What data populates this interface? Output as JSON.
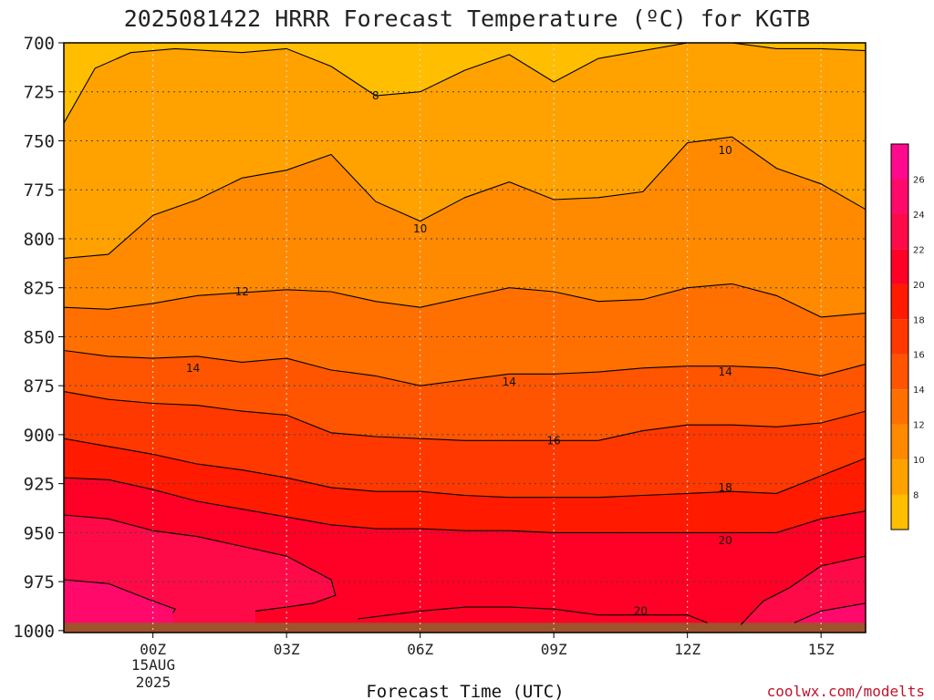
{
  "chart_data": {
    "type": "filled-contour",
    "title": "2025081422 HRRR Forecast Temperature (ºC) for KGTB",
    "xlabel": "Forecast Time (UTC)",
    "ylabel": "",
    "x_ticks": [
      "00Z",
      "03Z",
      "06Z",
      "09Z",
      "12Z",
      "15Z"
    ],
    "x_tick_hours": [
      0,
      3,
      6,
      9,
      12,
      15
    ],
    "x_date_label": [
      "15AUG",
      "2025"
    ],
    "x_range_hours": [
      -2,
      16
    ],
    "y_ticks": [
      700,
      725,
      750,
      775,
      800,
      825,
      850,
      875,
      900,
      925,
      950,
      975,
      1000
    ],
    "y_range_hpa": [
      700,
      1001
    ],
    "y_inverted": true,
    "grid": true,
    "contour_levels": [
      8,
      10,
      12,
      14,
      16,
      18,
      20
    ],
    "contour_labels": [
      {
        "text": "8",
        "hour": 5.0,
        "hpa": 727
      },
      {
        "text": "10",
        "hour": 6.0,
        "hpa": 795
      },
      {
        "text": "10",
        "hour": 12.85,
        "hpa": 755
      },
      {
        "text": "12",
        "hour": 2.0,
        "hpa": 827
      },
      {
        "text": "14",
        "hour": 0.9,
        "hpa": 866
      },
      {
        "text": "14",
        "hour": 8.0,
        "hpa": 873
      },
      {
        "text": "14",
        "hour": 12.85,
        "hpa": 868
      },
      {
        "text": "16",
        "hour": 9.0,
        "hpa": 903
      },
      {
        "text": "18",
        "hour": 12.85,
        "hpa": 927
      },
      {
        "text": "20",
        "hour": 12.85,
        "hpa": 954
      },
      {
        "text": "20",
        "hour": 10.95,
        "hpa": 990
      }
    ],
    "isotherms": [
      {
        "level": 8,
        "points": [
          [
            -2,
            741
          ],
          [
            -1.3,
            713
          ],
          [
            -0.5,
            705
          ],
          [
            0.5,
            703
          ],
          [
            2,
            705
          ],
          [
            3,
            703
          ],
          [
            4,
            712
          ],
          [
            5,
            727
          ],
          [
            6,
            725
          ],
          [
            7,
            714
          ],
          [
            8,
            706
          ],
          [
            9,
            720
          ],
          [
            10,
            708
          ],
          [
            12,
            700
          ]
        ]
      },
      {
        "level": 8,
        "points": [
          [
            13,
            700
          ],
          [
            14,
            703
          ],
          [
            15,
            703
          ],
          [
            16,
            704
          ]
        ]
      },
      {
        "level": 10,
        "points": [
          [
            -2,
            810
          ],
          [
            -1,
            808
          ],
          [
            0,
            788
          ],
          [
            1,
            780
          ],
          [
            2,
            769
          ],
          [
            3,
            765
          ],
          [
            4,
            757
          ],
          [
            5,
            781
          ],
          [
            6,
            791
          ],
          [
            7,
            779
          ],
          [
            8,
            771
          ],
          [
            9,
            780
          ],
          [
            10,
            779
          ],
          [
            11,
            776
          ],
          [
            12,
            751
          ],
          [
            13,
            748
          ],
          [
            14,
            764
          ],
          [
            15,
            772
          ],
          [
            16,
            785
          ]
        ]
      },
      {
        "level": 12,
        "points": [
          [
            -2,
            835
          ],
          [
            -1,
            836
          ],
          [
            0,
            833
          ],
          [
            1,
            829
          ],
          [
            3,
            826
          ],
          [
            4,
            827
          ],
          [
            5,
            832
          ],
          [
            6,
            835
          ],
          [
            7,
            830
          ],
          [
            8,
            825
          ],
          [
            9,
            827
          ],
          [
            10,
            832
          ],
          [
            11,
            831
          ],
          [
            12,
            825
          ],
          [
            13,
            823
          ],
          [
            14,
            829
          ],
          [
            15,
            840
          ],
          [
            16,
            838
          ]
        ]
      },
      {
        "level": 14,
        "points": [
          [
            -2,
            857
          ],
          [
            -1,
            860
          ],
          [
            0,
            861
          ],
          [
            1,
            860
          ],
          [
            2,
            863
          ],
          [
            3,
            861
          ],
          [
            4,
            867
          ],
          [
            5,
            870
          ],
          [
            6,
            875
          ],
          [
            7,
            872
          ],
          [
            8,
            869
          ],
          [
            9,
            869
          ],
          [
            10,
            868
          ],
          [
            11,
            866
          ],
          [
            12,
            865
          ],
          [
            13,
            865
          ],
          [
            14,
            866
          ],
          [
            15,
            870
          ],
          [
            16,
            864
          ]
        ]
      },
      {
        "level": 16,
        "points": [
          [
            -2,
            878
          ],
          [
            -1,
            882
          ],
          [
            0,
            884
          ],
          [
            1,
            885
          ],
          [
            2,
            888
          ],
          [
            3,
            890
          ],
          [
            4,
            899
          ],
          [
            5,
            901
          ],
          [
            6,
            902
          ],
          [
            7,
            903
          ],
          [
            8,
            903
          ],
          [
            9,
            903
          ],
          [
            10,
            903
          ],
          [
            11,
            898
          ],
          [
            12,
            895
          ],
          [
            13,
            895
          ],
          [
            14,
            896
          ],
          [
            15,
            894
          ],
          [
            16,
            888
          ]
        ]
      },
      {
        "level": 18,
        "points": [
          [
            -2,
            902
          ],
          [
            -1,
            906
          ],
          [
            0,
            910
          ],
          [
            1,
            915
          ],
          [
            2,
            918
          ],
          [
            3,
            922
          ],
          [
            4,
            927
          ],
          [
            5,
            929
          ],
          [
            6,
            929
          ],
          [
            7,
            931
          ],
          [
            8,
            932
          ],
          [
            9,
            932
          ],
          [
            10,
            932
          ],
          [
            11,
            931
          ],
          [
            12,
            930
          ],
          [
            13,
            929
          ],
          [
            14,
            930
          ],
          [
            15,
            921
          ],
          [
            16,
            912
          ]
        ]
      },
      {
        "level": 20,
        "points": [
          [
            -2,
            922
          ],
          [
            -1,
            923
          ],
          [
            0,
            928
          ],
          [
            1,
            934
          ],
          [
            2,
            938
          ],
          [
            3,
            942
          ],
          [
            4,
            946
          ],
          [
            5,
            948
          ],
          [
            6,
            948
          ],
          [
            7,
            949
          ],
          [
            8,
            949
          ],
          [
            9,
            950
          ],
          [
            10,
            950
          ],
          [
            11,
            950
          ],
          [
            12,
            950
          ],
          [
            13,
            950
          ],
          [
            14,
            950
          ],
          [
            15,
            943
          ],
          [
            16,
            939
          ]
        ]
      },
      {
        "level": 20,
        "points": [
          [
            4.6,
            994
          ],
          [
            6,
            990
          ],
          [
            7,
            988
          ],
          [
            8,
            988
          ],
          [
            9,
            989
          ],
          [
            10,
            992
          ],
          [
            11,
            992
          ],
          [
            12,
            992
          ],
          [
            12.45,
            996
          ]
        ]
      },
      {
        "level": 22,
        "points": [
          [
            -2,
            941
          ],
          [
            -1,
            943
          ],
          [
            0,
            949
          ],
          [
            1,
            952
          ],
          [
            2,
            957
          ],
          [
            3,
            962
          ],
          [
            4,
            974
          ],
          [
            4.1,
            982
          ],
          [
            3.6,
            986
          ],
          [
            3,
            988
          ],
          [
            2.3,
            990
          ]
        ]
      },
      {
        "level": 22,
        "points": [
          [
            13.2,
            997
          ],
          [
            13.7,
            985
          ],
          [
            14.3,
            978
          ],
          [
            15,
            967
          ],
          [
            16,
            962
          ]
        ]
      },
      {
        "level": 24,
        "points": [
          [
            -2,
            974
          ],
          [
            -1,
            976
          ],
          [
            -0.1,
            984
          ],
          [
            0.5,
            989
          ],
          [
            0.45,
            991
          ]
        ]
      },
      {
        "level": 24,
        "points": [
          [
            14.4,
            996
          ],
          [
            15,
            990
          ],
          [
            16,
            986
          ]
        ]
      }
    ],
    "colorbar": {
      "levels": [
        6,
        8,
        10,
        12,
        14,
        16,
        18,
        20,
        22,
        24,
        26,
        28
      ],
      "tick_labels": [
        "8",
        "10",
        "12",
        "14",
        "16",
        "18",
        "20",
        "22",
        "24",
        "26"
      ],
      "colors": [
        "#FFBE00",
        "#FFA200",
        "#FF8A00",
        "#FF7000",
        "#FF5500",
        "#FF3800",
        "#FF1A00",
        "#FF0026",
        "#FF0A48",
        "#FF0A6B",
        "#FF0A8C"
      ]
    },
    "terrain_color": "#A0522D",
    "terrain_top_hpa": 996,
    "credit": "coolwx.com/modelts"
  }
}
